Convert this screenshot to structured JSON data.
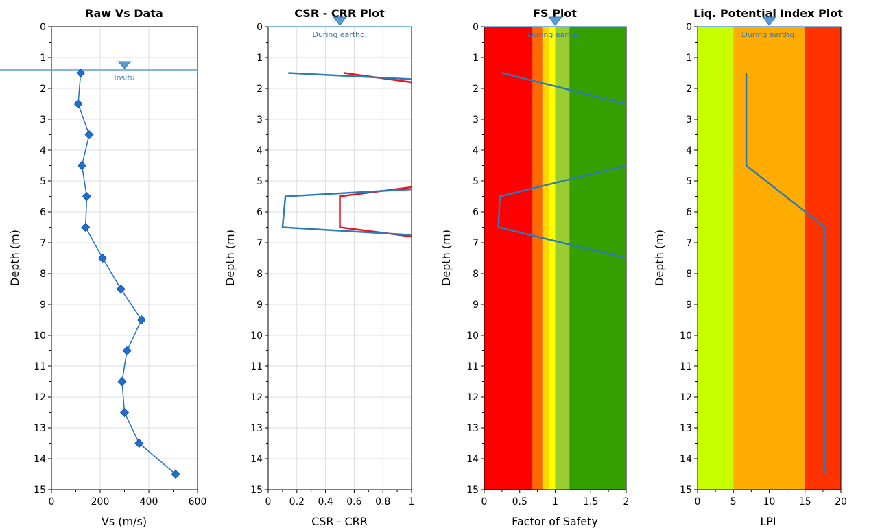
{
  "chart_data": [
    {
      "id": "vs",
      "type": "line",
      "title": "Raw Vs Data",
      "xlabel": "Vs (m/s)",
      "ylabel": "Depth (m)",
      "xlim": [
        0,
        600
      ],
      "ylim": [
        0,
        15
      ],
      "y_inverted": true,
      "xticks": [
        "0",
        "200",
        "400",
        "600"
      ],
      "xtick_values": [
        0,
        200,
        400,
        600
      ],
      "yticks": [
        "0",
        "1",
        "2",
        "3",
        "4",
        "5",
        "6",
        "7",
        "8",
        "9",
        "10",
        "11",
        "12",
        "13",
        "14",
        "15"
      ],
      "grid": true,
      "background": "#ffffff",
      "water_table": {
        "depth": 1.4,
        "label": "Insitu",
        "color": "#5b9bd5"
      },
      "series": [
        {
          "color": "#1e6fd0",
          "markers": "diamond",
          "x": [
            120,
            110,
            155,
            125,
            145,
            140,
            210,
            285,
            370,
            310,
            290,
            300,
            360,
            510
          ],
          "y": [
            1.5,
            2.5,
            3.5,
            4.5,
            5.5,
            6.5,
            7.5,
            8.5,
            9.5,
            10.5,
            11.5,
            12.5,
            13.5,
            14.5
          ]
        }
      ]
    },
    {
      "id": "csr",
      "type": "line",
      "title": "CSR - CRR Plot",
      "xlabel": "CSR - CRR",
      "ylabel": "Depth (m)",
      "xlim": [
        0,
        1
      ],
      "ylim": [
        0,
        15
      ],
      "y_inverted": true,
      "xticks": [
        "0",
        "0.2",
        "0.4",
        "0.6",
        "0.8",
        "1"
      ],
      "xtick_values": [
        0,
        0.2,
        0.4,
        0.6,
        0.8,
        1
      ],
      "yticks": [
        "0",
        "1",
        "2",
        "3",
        "4",
        "5",
        "6",
        "7",
        "8",
        "9",
        "10",
        "11",
        "12",
        "13",
        "14",
        "15"
      ],
      "grid": true,
      "background": "#ffffff",
      "water_table": {
        "depth": 0,
        "label": "During earthq.",
        "color": "#5b9bd5"
      },
      "series": [
        {
          "color": "#e8141e",
          "x": [
            0.53,
            1.0,
            null,
            1.0,
            0.5,
            0.5,
            1.0
          ],
          "y": [
            1.5,
            1.8,
            null,
            5.2,
            5.5,
            6.5,
            6.8
          ]
        },
        {
          "color": "#2b7bb9",
          "x": [
            0.14,
            1.0,
            null,
            1.0,
            0.12,
            0.1,
            1.0
          ],
          "y": [
            1.5,
            1.7,
            null,
            5.27,
            5.5,
            6.5,
            6.75
          ]
        }
      ]
    },
    {
      "id": "fs",
      "type": "line",
      "title": "FS Plot",
      "xlabel": "Factor of Safety",
      "ylabel": "Depth (m)",
      "xlim": [
        0,
        2
      ],
      "ylim": [
        0,
        15
      ],
      "y_inverted": true,
      "xticks": [
        "0",
        "0.5",
        "1",
        "1.5",
        "2"
      ],
      "xtick_values": [
        0,
        0.5,
        1,
        1.5,
        2
      ],
      "yticks": [
        "0",
        "1",
        "2",
        "3",
        "4",
        "5",
        "6",
        "7",
        "8",
        "9",
        "10",
        "11",
        "12",
        "13",
        "14",
        "15"
      ],
      "grid": false,
      "background": "#ffffff",
      "bands": [
        {
          "from": 0,
          "to": 0.68,
          "color": "#ff0000"
        },
        {
          "from": 0.68,
          "to": 0.82,
          "color": "#ff6a00"
        },
        {
          "from": 0.82,
          "to": 0.92,
          "color": "#ffd700"
        },
        {
          "from": 0.92,
          "to": 1.0,
          "color": "#ffff00"
        },
        {
          "from": 1.0,
          "to": 1.2,
          "color": "#9acd32"
        },
        {
          "from": 1.2,
          "to": 2.0,
          "color": "#33a000"
        }
      ],
      "water_table": {
        "depth": 0,
        "label": "During earthq.",
        "color": "#5b9bd5"
      },
      "series": [
        {
          "color": "#2b7bb9",
          "x": [
            0.25,
            2.0,
            null,
            2.0,
            0.22,
            0.2,
            2.0
          ],
          "y": [
            1.5,
            2.5,
            null,
            4.5,
            5.5,
            6.5,
            7.5
          ]
        }
      ]
    },
    {
      "id": "lpi",
      "type": "line",
      "title": "Liq. Potential Index Plot",
      "xlabel": "LPI",
      "ylabel": "Depth (m)",
      "xlim": [
        0,
        20
      ],
      "ylim": [
        0,
        15
      ],
      "y_inverted": true,
      "xticks": [
        "0",
        "5",
        "10",
        "15",
        "20"
      ],
      "xtick_values": [
        0,
        5,
        10,
        15,
        20
      ],
      "yticks": [
        "0",
        "1",
        "2",
        "3",
        "4",
        "5",
        "6",
        "7",
        "8",
        "9",
        "10",
        "11",
        "12",
        "13",
        "14",
        "15"
      ],
      "grid": false,
      "background": "#ffffff",
      "bands": [
        {
          "from": 0,
          "to": 5,
          "color": "#c8ff00"
        },
        {
          "from": 5,
          "to": 15,
          "color": "#ffab00"
        },
        {
          "from": 15,
          "to": 20,
          "color": "#ff3300"
        }
      ],
      "water_table": {
        "depth": 0,
        "label": "During earthq.",
        "color": "#5b9bd5"
      },
      "series": [
        {
          "color": "#2b7bb9",
          "x": [
            6.8,
            6.8,
            17.8,
            17.8
          ],
          "y": [
            1.5,
            4.5,
            6.5,
            14.5
          ]
        }
      ]
    }
  ]
}
